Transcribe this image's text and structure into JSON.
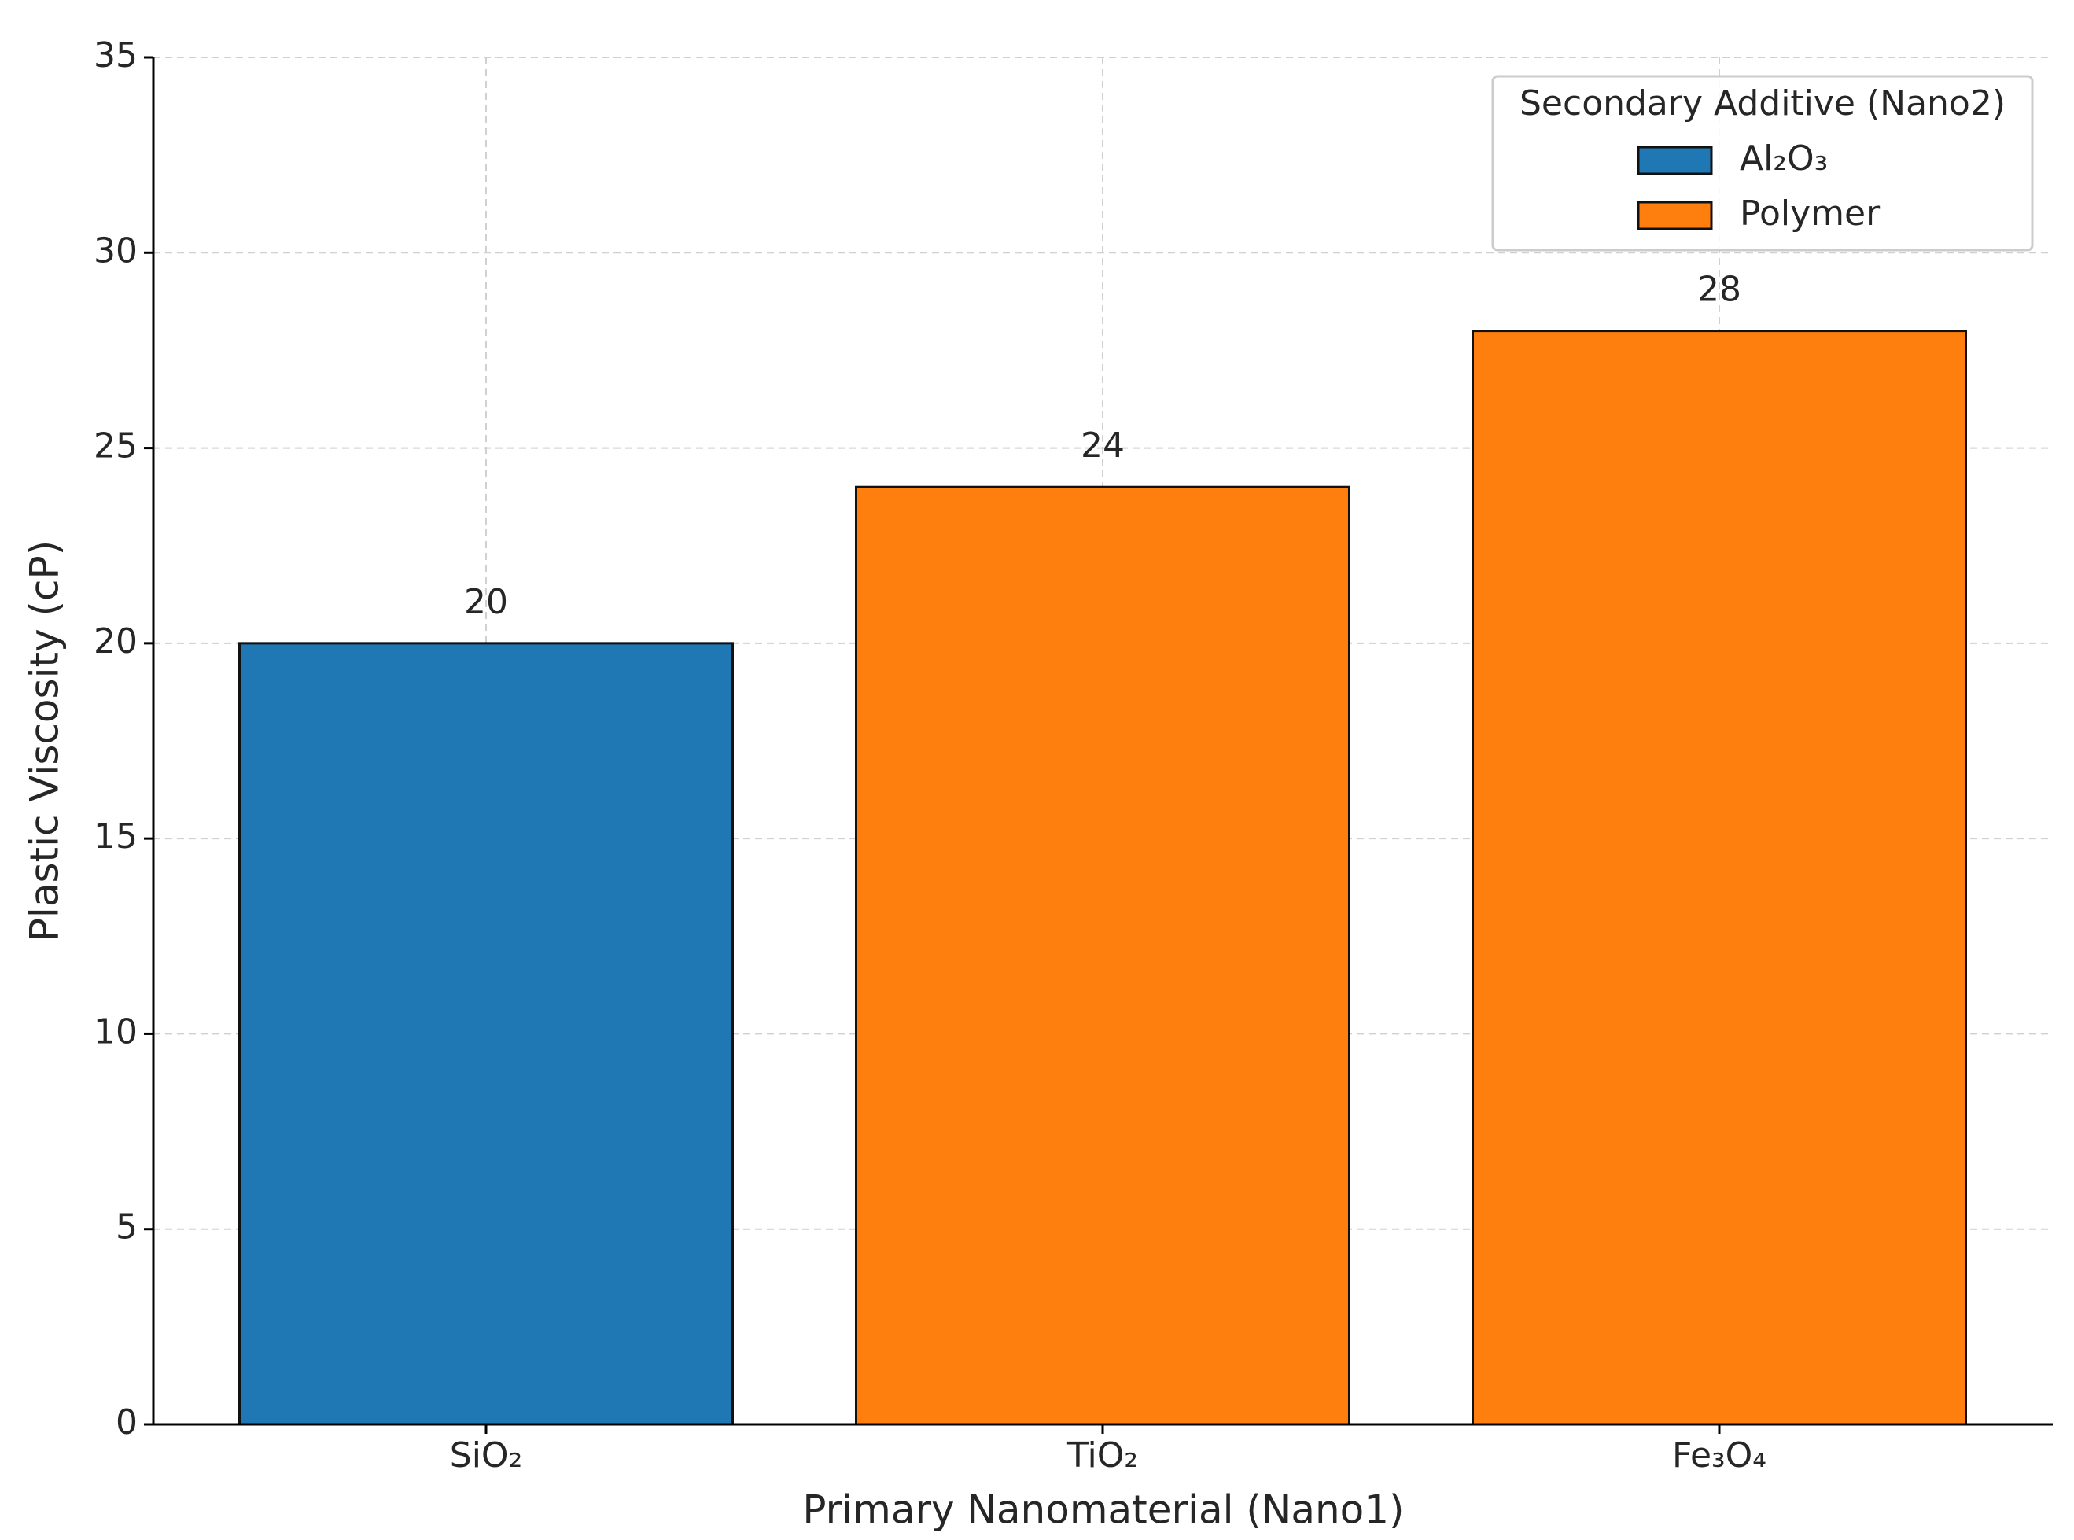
{
  "chart_data": {
    "type": "bar",
    "xlabel": "Primary Nanomaterial (Nano1)",
    "ylabel": "Plastic Viscosity (cP)",
    "categories": [
      "SiO₂",
      "TiO₂",
      "Fe₃O₄"
    ],
    "series": [
      {
        "name": "Al₂O₃",
        "color": "#1f77b4",
        "values": [
          20,
          null,
          null
        ]
      },
      {
        "name": "Polymer",
        "color": "#ff7f0e",
        "values": [
          null,
          24,
          28
        ]
      }
    ],
    "ylim": [
      0,
      35
    ],
    "yticks": [
      0,
      5,
      10,
      15,
      20,
      25,
      30,
      35
    ],
    "grid": true,
    "legend": {
      "title": "Secondary Additive (Nano2)",
      "position": "upper right"
    }
  }
}
